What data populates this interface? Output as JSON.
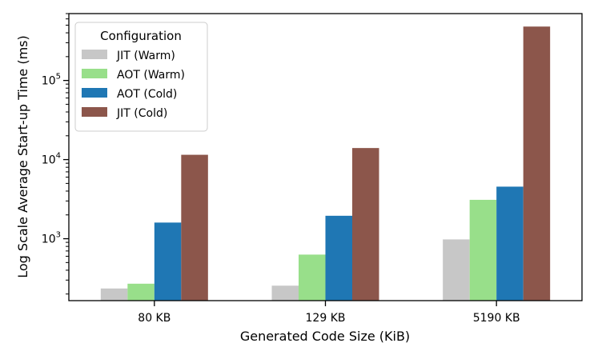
{
  "chart_data": {
    "type": "bar",
    "title": "",
    "xlabel": "Generated Code Size (KiB)",
    "ylabel": "Log Scale Average Start-up Time (ms)",
    "yscale": "log",
    "ylim": [
      165,
      700000
    ],
    "categories": [
      "80 KB",
      "129 KB",
      "5190 KB"
    ],
    "yticks": [
      {
        "value": 1000,
        "base": "10",
        "exp": "3"
      },
      {
        "value": 10000,
        "base": "10",
        "exp": "4"
      },
      {
        "value": 100000,
        "base": "10",
        "exp": "5"
      }
    ],
    "grid": false,
    "legend": {
      "title": "Configuration",
      "position": "top-left"
    },
    "series": [
      {
        "name": "JIT (Warm)",
        "color": "#c7c7c7",
        "values": [
          235,
          255,
          980
        ]
      },
      {
        "name": "AOT (Warm)",
        "color": "#98df8a",
        "values": [
          270,
          630,
          3100
        ]
      },
      {
        "name": "AOT (Cold)",
        "color": "#1f77b4",
        "values": [
          1600,
          1950,
          4550
        ]
      },
      {
        "name": "JIT (Cold)",
        "color": "#8c564b",
        "values": [
          11500,
          14000,
          480000
        ]
      }
    ]
  }
}
